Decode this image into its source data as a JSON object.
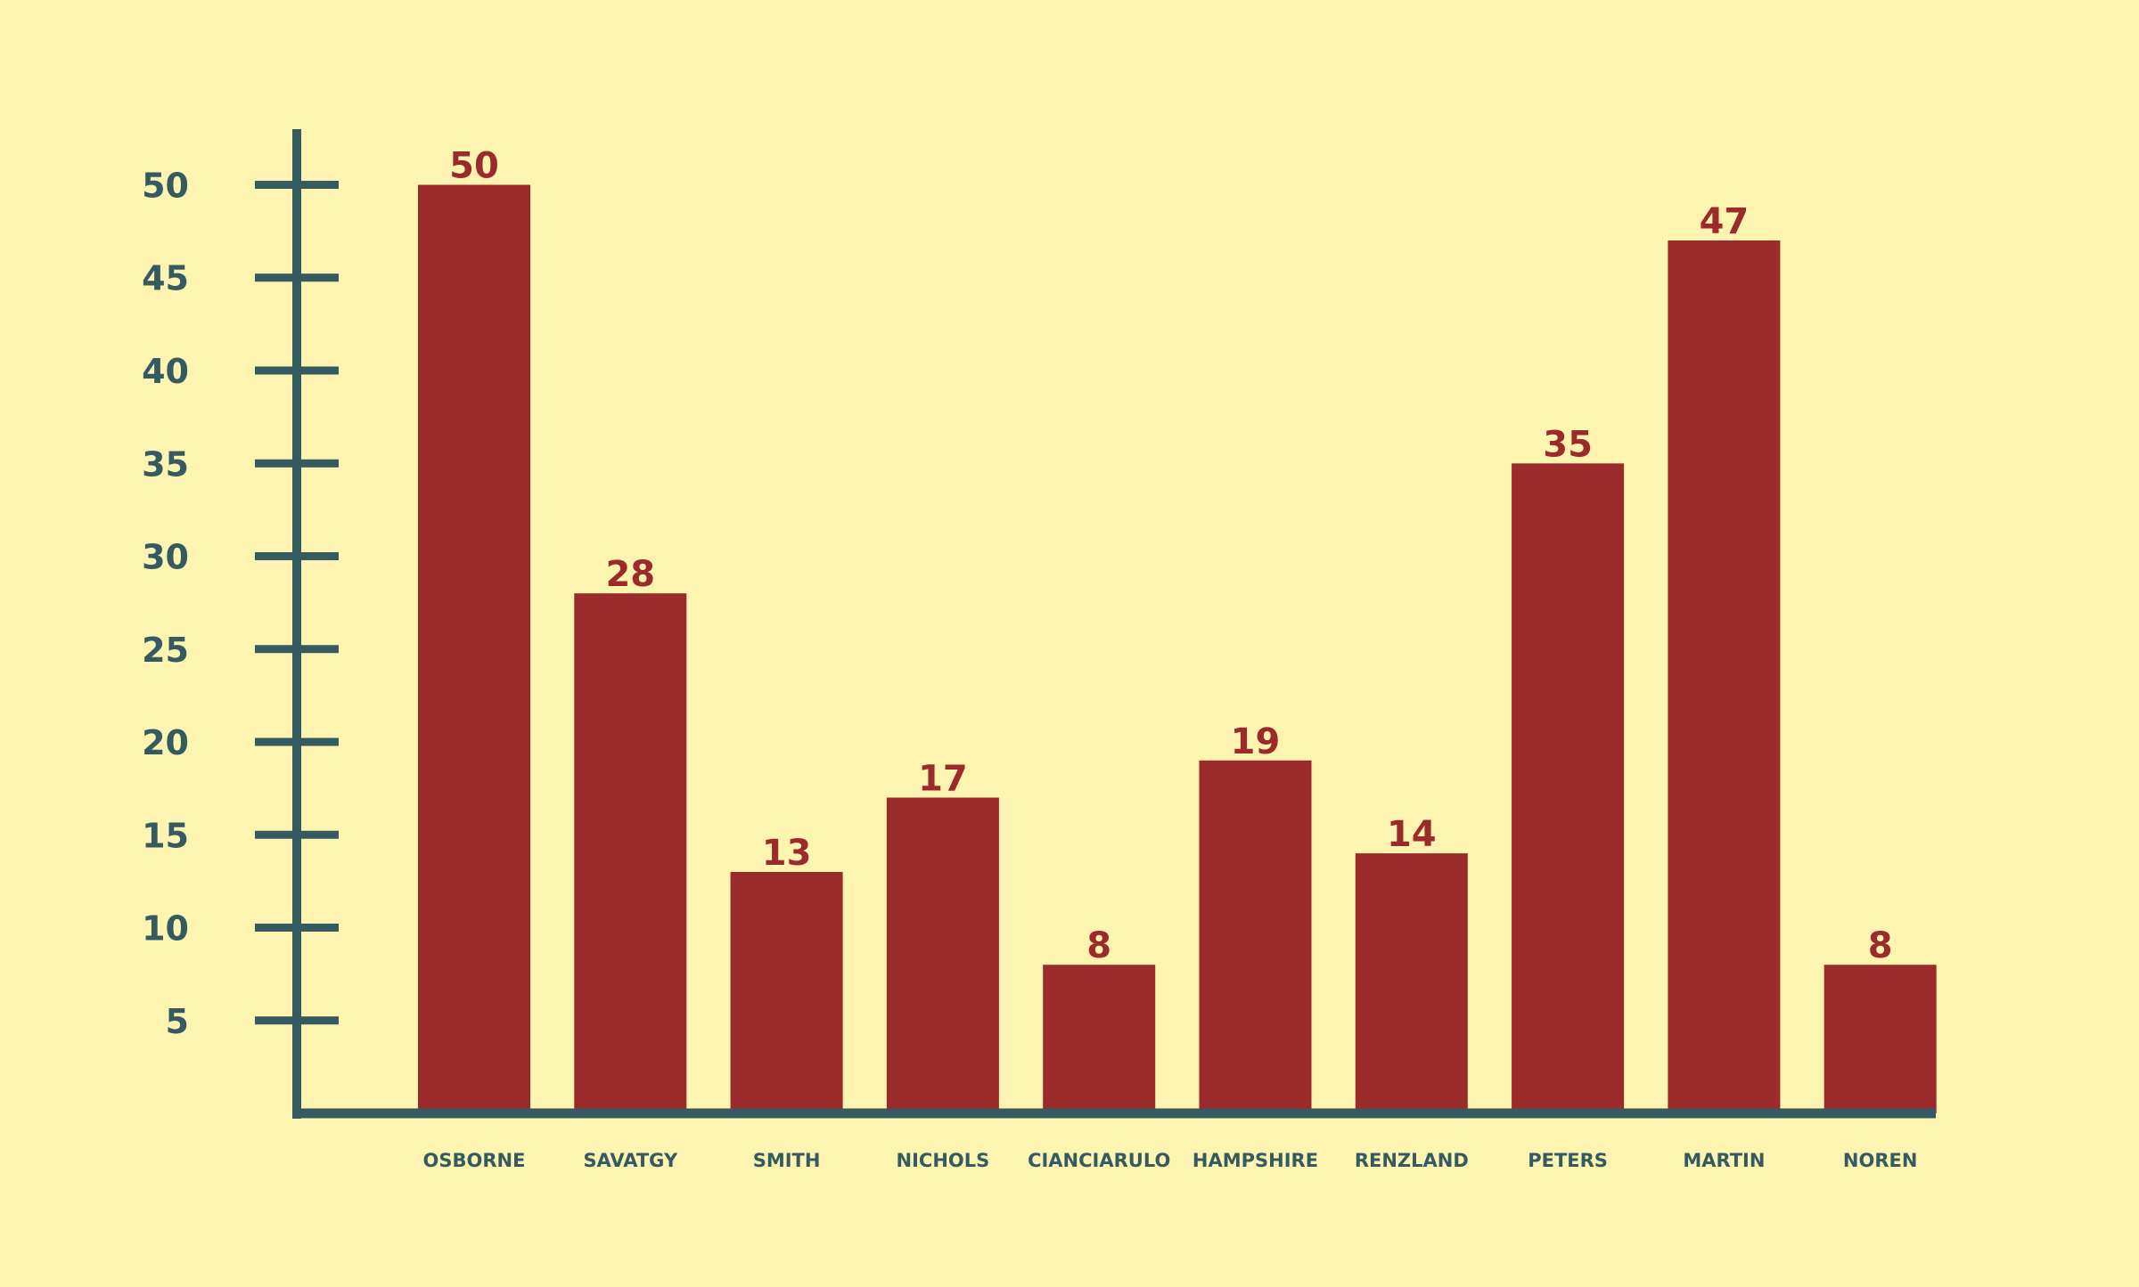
{
  "chart_data": {
    "type": "bar",
    "categories": [
      "OSBORNE",
      "SAVATGY",
      "SMITH",
      "NICHOLS",
      "CIANCIARULO",
      "HAMPSHIRE",
      "RENZLAND",
      "PETERS",
      "MARTIN",
      "NOREN"
    ],
    "values": [
      50,
      28,
      13,
      17,
      8,
      19,
      14,
      35,
      47,
      8
    ],
    "data_labels": [
      "50",
      "28",
      "13",
      "17",
      "8",
      "19",
      "14",
      "35",
      "47",
      "8"
    ],
    "y_ticks": [
      5,
      10,
      15,
      20,
      25,
      30,
      35,
      40,
      45,
      50
    ],
    "ylim": [
      0,
      52
    ],
    "title": "",
    "xlabel": "",
    "ylabel": "",
    "grid": false,
    "legend": "none"
  },
  "colors": {
    "background": "#fef4b2",
    "bar": "#9b2a2b",
    "axis": "#355a60",
    "data_label": "#9b2a2b",
    "tick_label": "#355a60"
  }
}
